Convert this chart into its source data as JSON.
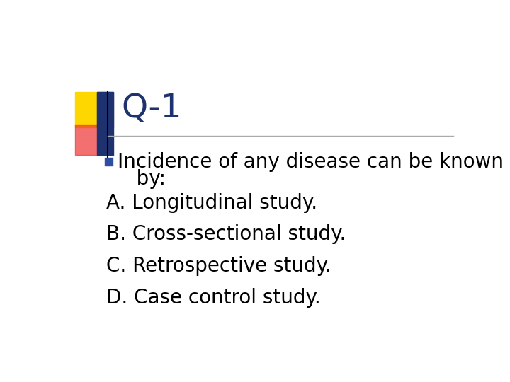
{
  "title": "Q-1",
  "title_color": "#1F3270",
  "title_fontsize": 34,
  "background_color": "#FFFFFF",
  "bullet_line1": "Incidence of any disease can be known",
  "bullet_line2": "   by:",
  "options": [
    "A. Longitudinal study.",
    "B. Cross-sectional study.",
    "C. Retrospective study.",
    "D. Case control study."
  ],
  "text_color": "#000000",
  "text_fontsize": 20,
  "bullet_color": "#2E4EA0",
  "dec_yellow_color": "#FFD700",
  "dec_red_color": "#EE3333",
  "dec_blue_color": "#1F3270",
  "line_color": "#AAAAAA"
}
